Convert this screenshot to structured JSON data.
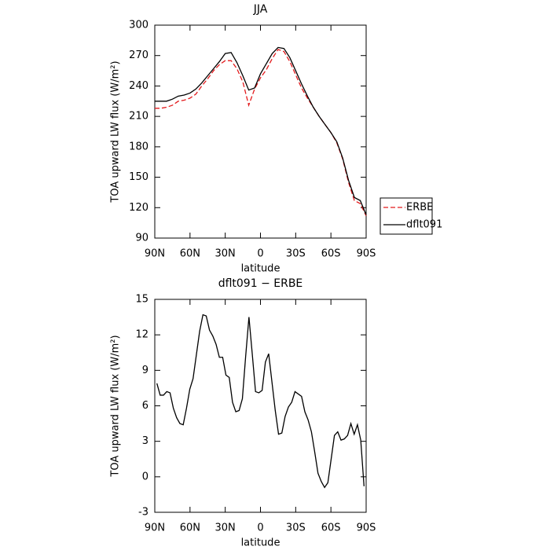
{
  "chart_data": [
    {
      "type": "line",
      "title": "JJA",
      "xlabel": "latitude",
      "ylabel": "TOA upward LW flux (W/m²)",
      "x": [
        90,
        85,
        80,
        75,
        70,
        65,
        60,
        55,
        50,
        45,
        40,
        35,
        30,
        25,
        20,
        15,
        10,
        5,
        0,
        -5,
        -10,
        -15,
        -20,
        -25,
        -30,
        -35,
        -40,
        -45,
        -50,
        -55,
        -60,
        -65,
        -70,
        -75,
        -80,
        -85,
        -90
      ],
      "series": [
        {
          "name": "ERBE",
          "color": "#e31a1c",
          "dash": true,
          "values": [
            218,
            218,
            219,
            221,
            225,
            226,
            228,
            232,
            240,
            247,
            255,
            261,
            265,
            265,
            257,
            244,
            221,
            237,
            248,
            256,
            267,
            276,
            274,
            264,
            251,
            238,
            228,
            219,
            210,
            202,
            194,
            184,
            168,
            145,
            127,
            124,
            112
          ]
        },
        {
          "name": "dflt091",
          "color": "#000000",
          "dash": false,
          "values": [
            225,
            225,
            225,
            227,
            230,
            231,
            233,
            237,
            243,
            250,
            257,
            264,
            272,
            273,
            263,
            250,
            236,
            238,
            252,
            262,
            272,
            278,
            277,
            268,
            255,
            242,
            230,
            219,
            210,
            202,
            194,
            185,
            169,
            147,
            130,
            127,
            113
          ]
        }
      ],
      "xlim": [
        90,
        -90
      ],
      "xticks": [
        {
          "value": 90,
          "label": "90N"
        },
        {
          "value": 60,
          "label": "60N"
        },
        {
          "value": 30,
          "label": "30N"
        },
        0,
        {
          "value": -30,
          "label": "30S"
        },
        {
          "value": -60,
          "label": "60S"
        },
        {
          "value": -90,
          "label": "90S"
        }
      ],
      "ylim": [
        90,
        300
      ],
      "yticks": [
        90,
        120,
        150,
        180,
        210,
        240,
        270,
        300
      ],
      "legend": "right"
    },
    {
      "type": "line",
      "title": "dflt091 − ERBE",
      "xlabel": "latitude",
      "ylabel": "TOA upward LW flux (W/m²)",
      "x": [
        88.2,
        85.4,
        82.6,
        79.8,
        77,
        74.2,
        71.4,
        68.6,
        65.8,
        63,
        60.2,
        57.4,
        54.6,
        51.8,
        49,
        46.2,
        43.4,
        40.6,
        37.8,
        35,
        32.2,
        29.4,
        26.6,
        23.8,
        21,
        18.2,
        15.4,
        12.6,
        9.8,
        7,
        4.2,
        1.4,
        -1.4,
        -4.2,
        -7,
        -9.8,
        -12.6,
        -15.4,
        -18.2,
        -21,
        -23.8,
        -26.6,
        -29.4,
        -32.2,
        -35,
        -37.8,
        -40.6,
        -43.4,
        -46.2,
        -49,
        -51.8,
        -54.6,
        -57.4,
        -60.2,
        -63,
        -65.8,
        -68.6,
        -71.4,
        -74.2,
        -77,
        -79.8,
        -82.6,
        -85.4,
        -88.2
      ],
      "series": [
        {
          "color": "#000000",
          "dash": false,
          "values": [
            7.9,
            6.9,
            6.9,
            7.2,
            7.1,
            5.8,
            5.0,
            4.5,
            4.4,
            5.8,
            7.4,
            8.3,
            10.3,
            12.3,
            13.7,
            13.6,
            12.4,
            11.9,
            11.2,
            10.1,
            10.1,
            8.6,
            8.4,
            6.3,
            5.5,
            5.6,
            6.6,
            10.2,
            13.5,
            10.4,
            7.2,
            7.1,
            7.3,
            9.7,
            10.4,
            8.0,
            5.6,
            3.6,
            3.7,
            5.1,
            5.9,
            6.3,
            7.2,
            7.0,
            6.8,
            5.5,
            4.8,
            3.8,
            2.1,
            0.3,
            -0.4,
            -0.9,
            -0.5,
            1.5,
            3.5,
            3.8,
            3.1,
            3.2,
            3.5,
            4.5,
            3.6,
            4.4,
            3.1,
            -0.8
          ]
        }
      ],
      "xlim": [
        90,
        -90
      ],
      "xticks": [
        {
          "value": 90,
          "label": "90N"
        },
        {
          "value": 60,
          "label": "60N"
        },
        {
          "value": 30,
          "label": "30N"
        },
        0,
        {
          "value": -30,
          "label": "30S"
        },
        {
          "value": -60,
          "label": "60S"
        },
        {
          "value": -90,
          "label": "90S"
        }
      ],
      "ylim": [
        -3,
        15
      ],
      "yticks": [
        -3,
        0,
        3,
        6,
        9,
        12,
        15
      ]
    }
  ]
}
